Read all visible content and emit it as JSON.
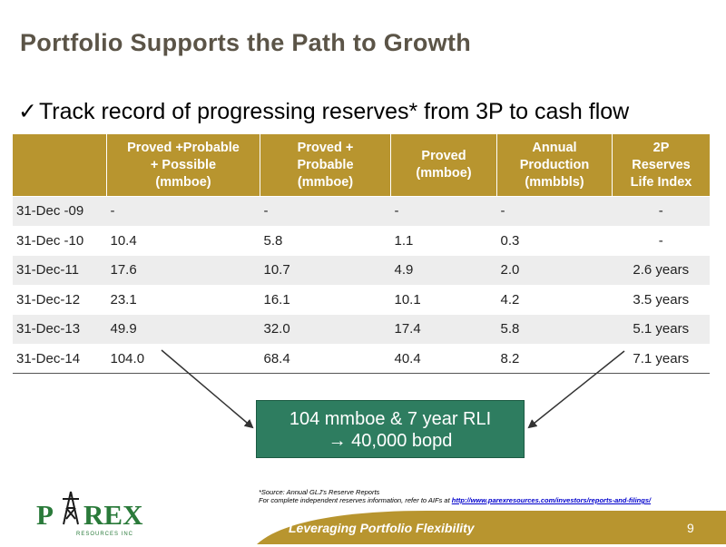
{
  "title": "Portfolio Supports the Path to Growth",
  "bullet": {
    "check": "✓",
    "text": "Track record of progressing reserves* from 3P to cash flow"
  },
  "table": {
    "headers": [
      {
        "lines": [
          ""
        ]
      },
      {
        "lines": [
          "Proved +Probable",
          "+ Possible",
          "(mmboe)"
        ]
      },
      {
        "lines": [
          "Proved +",
          "Probable",
          "(mmboe)"
        ]
      },
      {
        "lines": [
          "Proved",
          "(mmboe)"
        ]
      },
      {
        "lines": [
          "Annual",
          "Production",
          "(mmbbls)"
        ]
      },
      {
        "lines": [
          "2P",
          "Reserves",
          "Life Index"
        ]
      }
    ],
    "rows": [
      [
        "31-Dec -09",
        "-",
        "-",
        "-",
        "-",
        "-"
      ],
      [
        "31-Dec -10",
        "10.4",
        "5.8",
        "1.1",
        "0.3",
        "-"
      ],
      [
        "31-Dec-11",
        "17.6",
        "10.7",
        "4.9",
        "2.0",
        "2.6 years"
      ],
      [
        "31-Dec-12",
        "23.1",
        "16.1",
        "10.1",
        "4.2",
        "3.5 years"
      ],
      [
        "31-Dec-13",
        "49.9",
        "32.0",
        "17.4",
        "5.8",
        "5.1 years"
      ],
      [
        "31-Dec-14",
        "104.0",
        "68.4",
        "40.4",
        "8.2",
        "7.1 years"
      ]
    ]
  },
  "callout": {
    "line1": "104 mmboe & 7 year RLI",
    "line2": "→ 40,000 bopd"
  },
  "source": {
    "line1": "*Source:  Annual GLJ's Reserve Reports",
    "line2_prefix": "For  complete independent reserves information, refer to AIFs at ",
    "link": "http://www.parexresources.com/investors/reports-and-filings/"
  },
  "footer": {
    "tagline": "Leveraging Portfolio Flexibility",
    "page": "9"
  },
  "logo": {
    "name": "PAREX",
    "sub": "RESOURCES INC"
  },
  "colors": {
    "gold": "#b8952f",
    "green": "#2e7d60",
    "logo_green": "#2a7a3a",
    "title": "#5b5447"
  }
}
